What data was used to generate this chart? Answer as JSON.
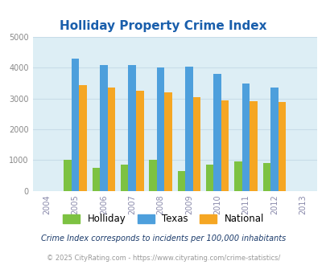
{
  "title": "Holliday Property Crime Index",
  "years": [
    2004,
    2005,
    2006,
    2007,
    2008,
    2009,
    2010,
    2011,
    2012,
    2013
  ],
  "bar_years": [
    2005,
    2006,
    2007,
    2008,
    2009,
    2010,
    2011,
    2012
  ],
  "holliday": [
    1000,
    750,
    860,
    1000,
    650,
    855,
    950,
    900
  ],
  "texas": [
    4300,
    4100,
    4100,
    4000,
    4050,
    3800,
    3500,
    3350
  ],
  "national": [
    3450,
    3350,
    3250,
    3200,
    3050,
    2950,
    2920,
    2880
  ],
  "color_holliday": "#7dc242",
  "color_texas": "#4d9fdc",
  "color_national": "#f5a623",
  "bg_color": "#ddeef5",
  "ylim": [
    0,
    5000
  ],
  "yticks": [
    0,
    1000,
    2000,
    3000,
    4000,
    5000
  ],
  "title_color": "#1a5fac",
  "title_fontsize": 11,
  "xtick_color": "#8888aa",
  "ytick_color": "#888888",
  "legend_labels": [
    "Holliday",
    "Texas",
    "National"
  ],
  "footnote1": "Crime Index corresponds to incidents per 100,000 inhabitants",
  "footnote2": "© 2025 CityRating.com - https://www.cityrating.com/crime-statistics/",
  "footnote_color1": "#1a3a6a",
  "footnote_color2": "#999999",
  "grid_color": "#c8dce8"
}
